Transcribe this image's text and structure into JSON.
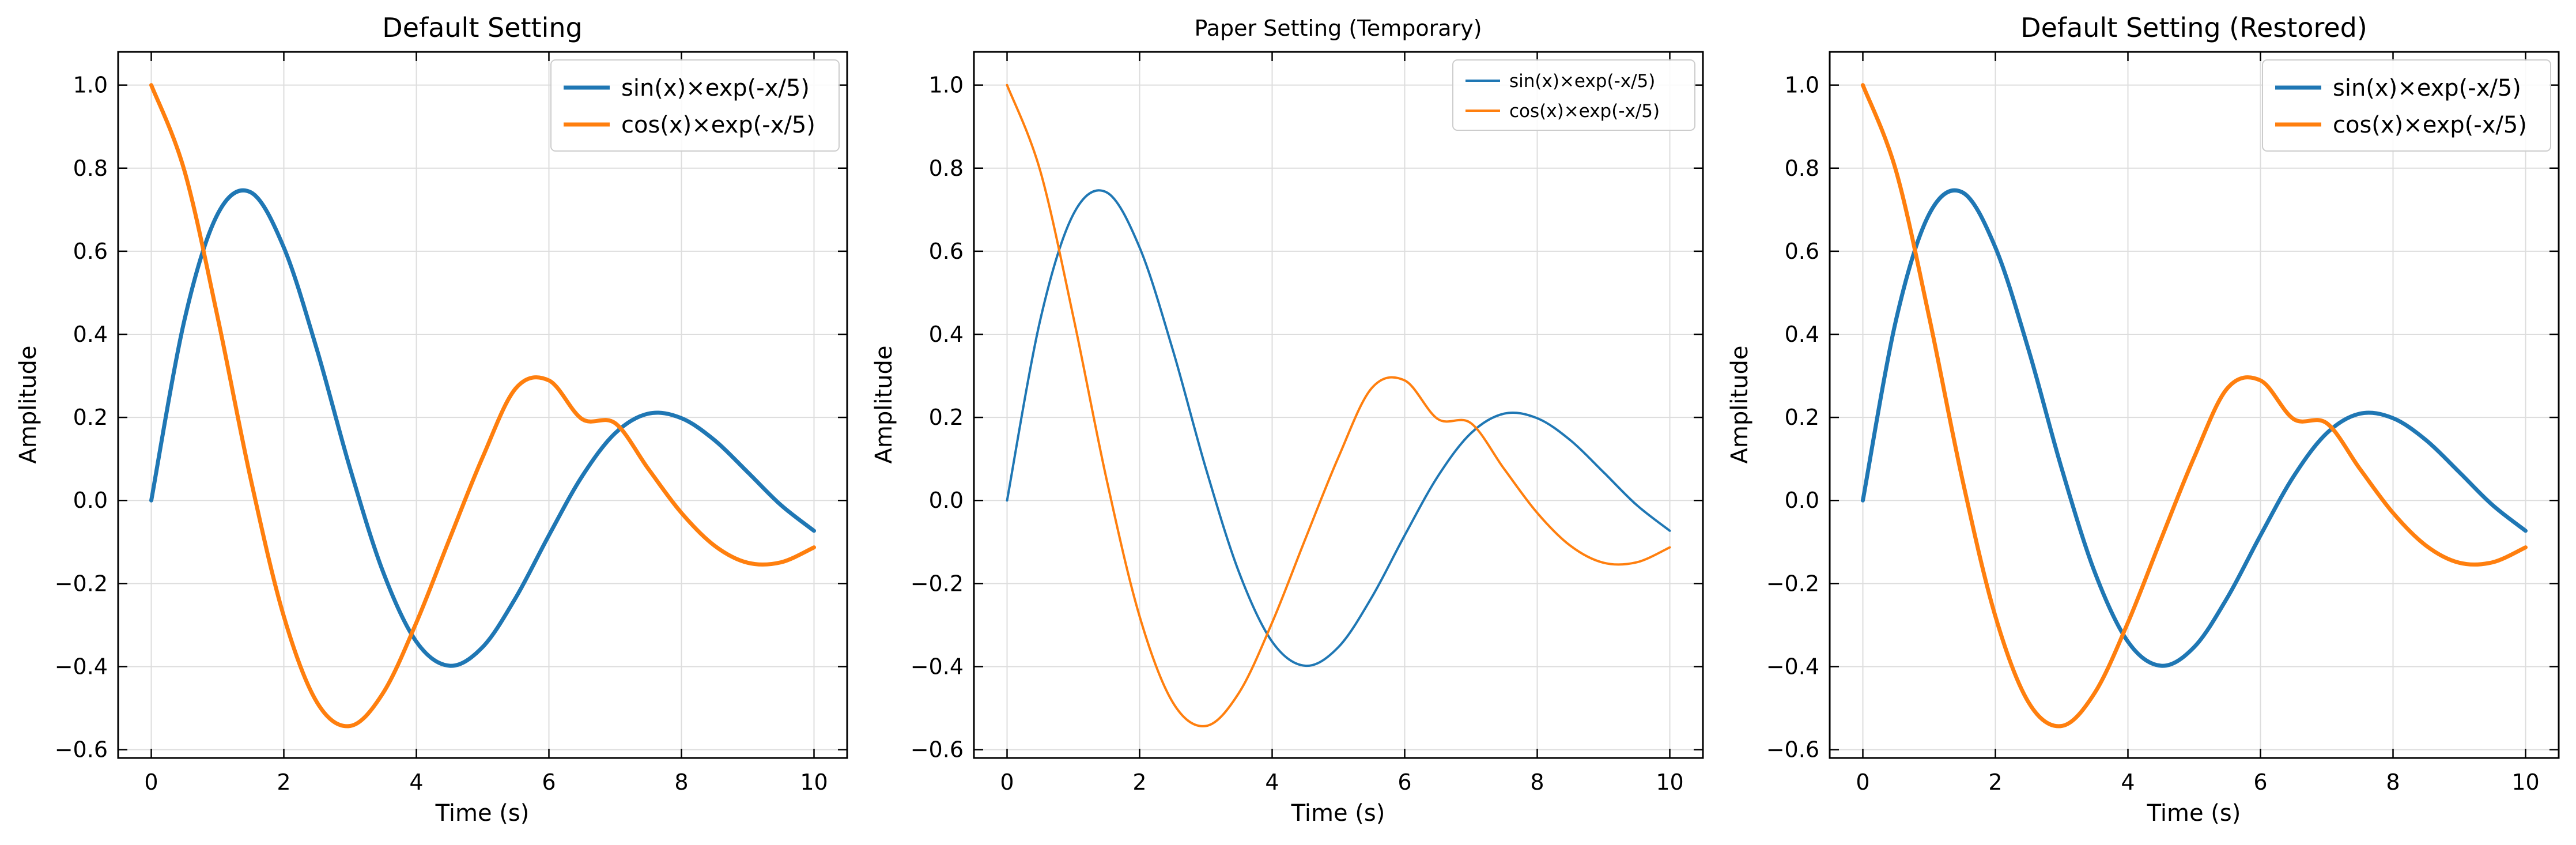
{
  "chart_data": [
    {
      "type": "line",
      "title": "Default Setting",
      "style": "default",
      "xlabel": "Time (s)",
      "ylabel": "Amplitude",
      "xlim": [
        -0.5,
        10.5
      ],
      "ylim": [
        -0.62,
        1.08
      ],
      "xticks": [
        0,
        2,
        4,
        6,
        8,
        10
      ],
      "xtick_labels": [
        "0",
        "2",
        "4",
        "6",
        "8",
        "10"
      ],
      "yticks": [
        -0.6,
        -0.4,
        -0.2,
        0.0,
        0.2,
        0.4,
        0.6,
        0.8,
        1.0
      ],
      "ytick_labels": [
        "−0.6",
        "−0.4",
        "−0.2",
        "0.0",
        "0.2",
        "0.4",
        "0.6",
        "0.8",
        "1.0"
      ],
      "grid": true,
      "legend": "top-right",
      "x": [
        0,
        0.5,
        1,
        1.5,
        2,
        2.5,
        3,
        3.5,
        4,
        4.5,
        5,
        5.5,
        6,
        6.5,
        7,
        7.5,
        8,
        8.5,
        9,
        9.5,
        10
      ],
      "series": [
        {
          "name": "sin(x)×exp(-x/5)",
          "color": "#1f77b4",
          "values": [
            0,
            0.434,
            0.689,
            0.742,
            0.609,
            0.363,
            0.077,
            -0.173,
            -0.34,
            -0.398,
            -0.353,
            -0.234,
            -0.084,
            0.058,
            0.162,
            0.209,
            0.198,
            0.145,
            0.068,
            -0.011,
            -0.073
          ]
        },
        {
          "name": "cos(x)×exp(-x/5)",
          "color": "#ff7f0e",
          "values": [
            1.0,
            0.794,
            0.442,
            0.052,
            -0.279,
            -0.486,
            -0.543,
            -0.463,
            -0.294,
            -0.093,
            0.104,
            0.27,
            0.289,
            0.196,
            0.186,
            0.076,
            -0.03,
            -0.109,
            -0.15,
            -0.149,
            -0.113
          ]
        }
      ]
    },
    {
      "type": "line",
      "title": "Paper Setting (Temporary)",
      "style": "paper",
      "xlabel": "Time (s)",
      "ylabel": "Amplitude",
      "xlim": [
        -0.5,
        10.5
      ],
      "ylim": [
        -0.62,
        1.08
      ],
      "xticks": [
        0,
        2,
        4,
        6,
        8,
        10
      ],
      "xtick_labels": [
        "0",
        "2",
        "4",
        "6",
        "8",
        "10"
      ],
      "yticks": [
        -0.6,
        -0.4,
        -0.2,
        0.0,
        0.2,
        0.4,
        0.6,
        0.8,
        1.0
      ],
      "ytick_labels": [
        "−0.6",
        "−0.4",
        "−0.2",
        "0.0",
        "0.2",
        "0.4",
        "0.6",
        "0.8",
        "1.0"
      ],
      "grid": true,
      "legend": "top-right",
      "x": [
        0,
        0.5,
        1,
        1.5,
        2,
        2.5,
        3,
        3.5,
        4,
        4.5,
        5,
        5.5,
        6,
        6.5,
        7,
        7.5,
        8,
        8.5,
        9,
        9.5,
        10
      ],
      "series": [
        {
          "name": "sin(x)×exp(-x/5)",
          "color": "#1f77b4",
          "values": [
            0,
            0.434,
            0.689,
            0.742,
            0.609,
            0.363,
            0.077,
            -0.173,
            -0.34,
            -0.398,
            -0.353,
            -0.234,
            -0.084,
            0.058,
            0.162,
            0.209,
            0.198,
            0.145,
            0.068,
            -0.011,
            -0.073
          ]
        },
        {
          "name": "cos(x)×exp(-x/5)",
          "color": "#ff7f0e",
          "values": [
            1.0,
            0.794,
            0.442,
            0.052,
            -0.279,
            -0.486,
            -0.543,
            -0.463,
            -0.294,
            -0.093,
            0.104,
            0.27,
            0.289,
            0.196,
            0.186,
            0.076,
            -0.03,
            -0.109,
            -0.15,
            -0.149,
            -0.113
          ]
        }
      ]
    },
    {
      "type": "line",
      "title": "Default Setting (Restored)",
      "style": "default",
      "xlabel": "Time (s)",
      "ylabel": "Amplitude",
      "xlim": [
        -0.5,
        10.5
      ],
      "ylim": [
        -0.62,
        1.08
      ],
      "xticks": [
        0,
        2,
        4,
        6,
        8,
        10
      ],
      "xtick_labels": [
        "0",
        "2",
        "4",
        "6",
        "8",
        "10"
      ],
      "yticks": [
        -0.6,
        -0.4,
        -0.2,
        0.0,
        0.2,
        0.4,
        0.6,
        0.8,
        1.0
      ],
      "ytick_labels": [
        "−0.6",
        "−0.4",
        "−0.2",
        "0.0",
        "0.2",
        "0.4",
        "0.6",
        "0.8",
        "1.0"
      ],
      "grid": true,
      "legend": "top-right",
      "x": [
        0,
        0.5,
        1,
        1.5,
        2,
        2.5,
        3,
        3.5,
        4,
        4.5,
        5,
        5.5,
        6,
        6.5,
        7,
        7.5,
        8,
        8.5,
        9,
        9.5,
        10
      ],
      "series": [
        {
          "name": "sin(x)×exp(-x/5)",
          "color": "#1f77b4",
          "values": [
            0,
            0.434,
            0.689,
            0.742,
            0.609,
            0.363,
            0.077,
            -0.173,
            -0.34,
            -0.398,
            -0.353,
            -0.234,
            -0.084,
            0.058,
            0.162,
            0.209,
            0.198,
            0.145,
            0.068,
            -0.011,
            -0.073
          ]
        },
        {
          "name": "cos(x)×exp(-x/5)",
          "color": "#ff7f0e",
          "values": [
            1.0,
            0.794,
            0.442,
            0.052,
            -0.279,
            -0.486,
            -0.543,
            -0.463,
            -0.294,
            -0.093,
            0.104,
            0.27,
            0.289,
            0.196,
            0.186,
            0.076,
            -0.03,
            -0.109,
            -0.15,
            -0.149,
            -0.113
          ]
        }
      ]
    }
  ]
}
